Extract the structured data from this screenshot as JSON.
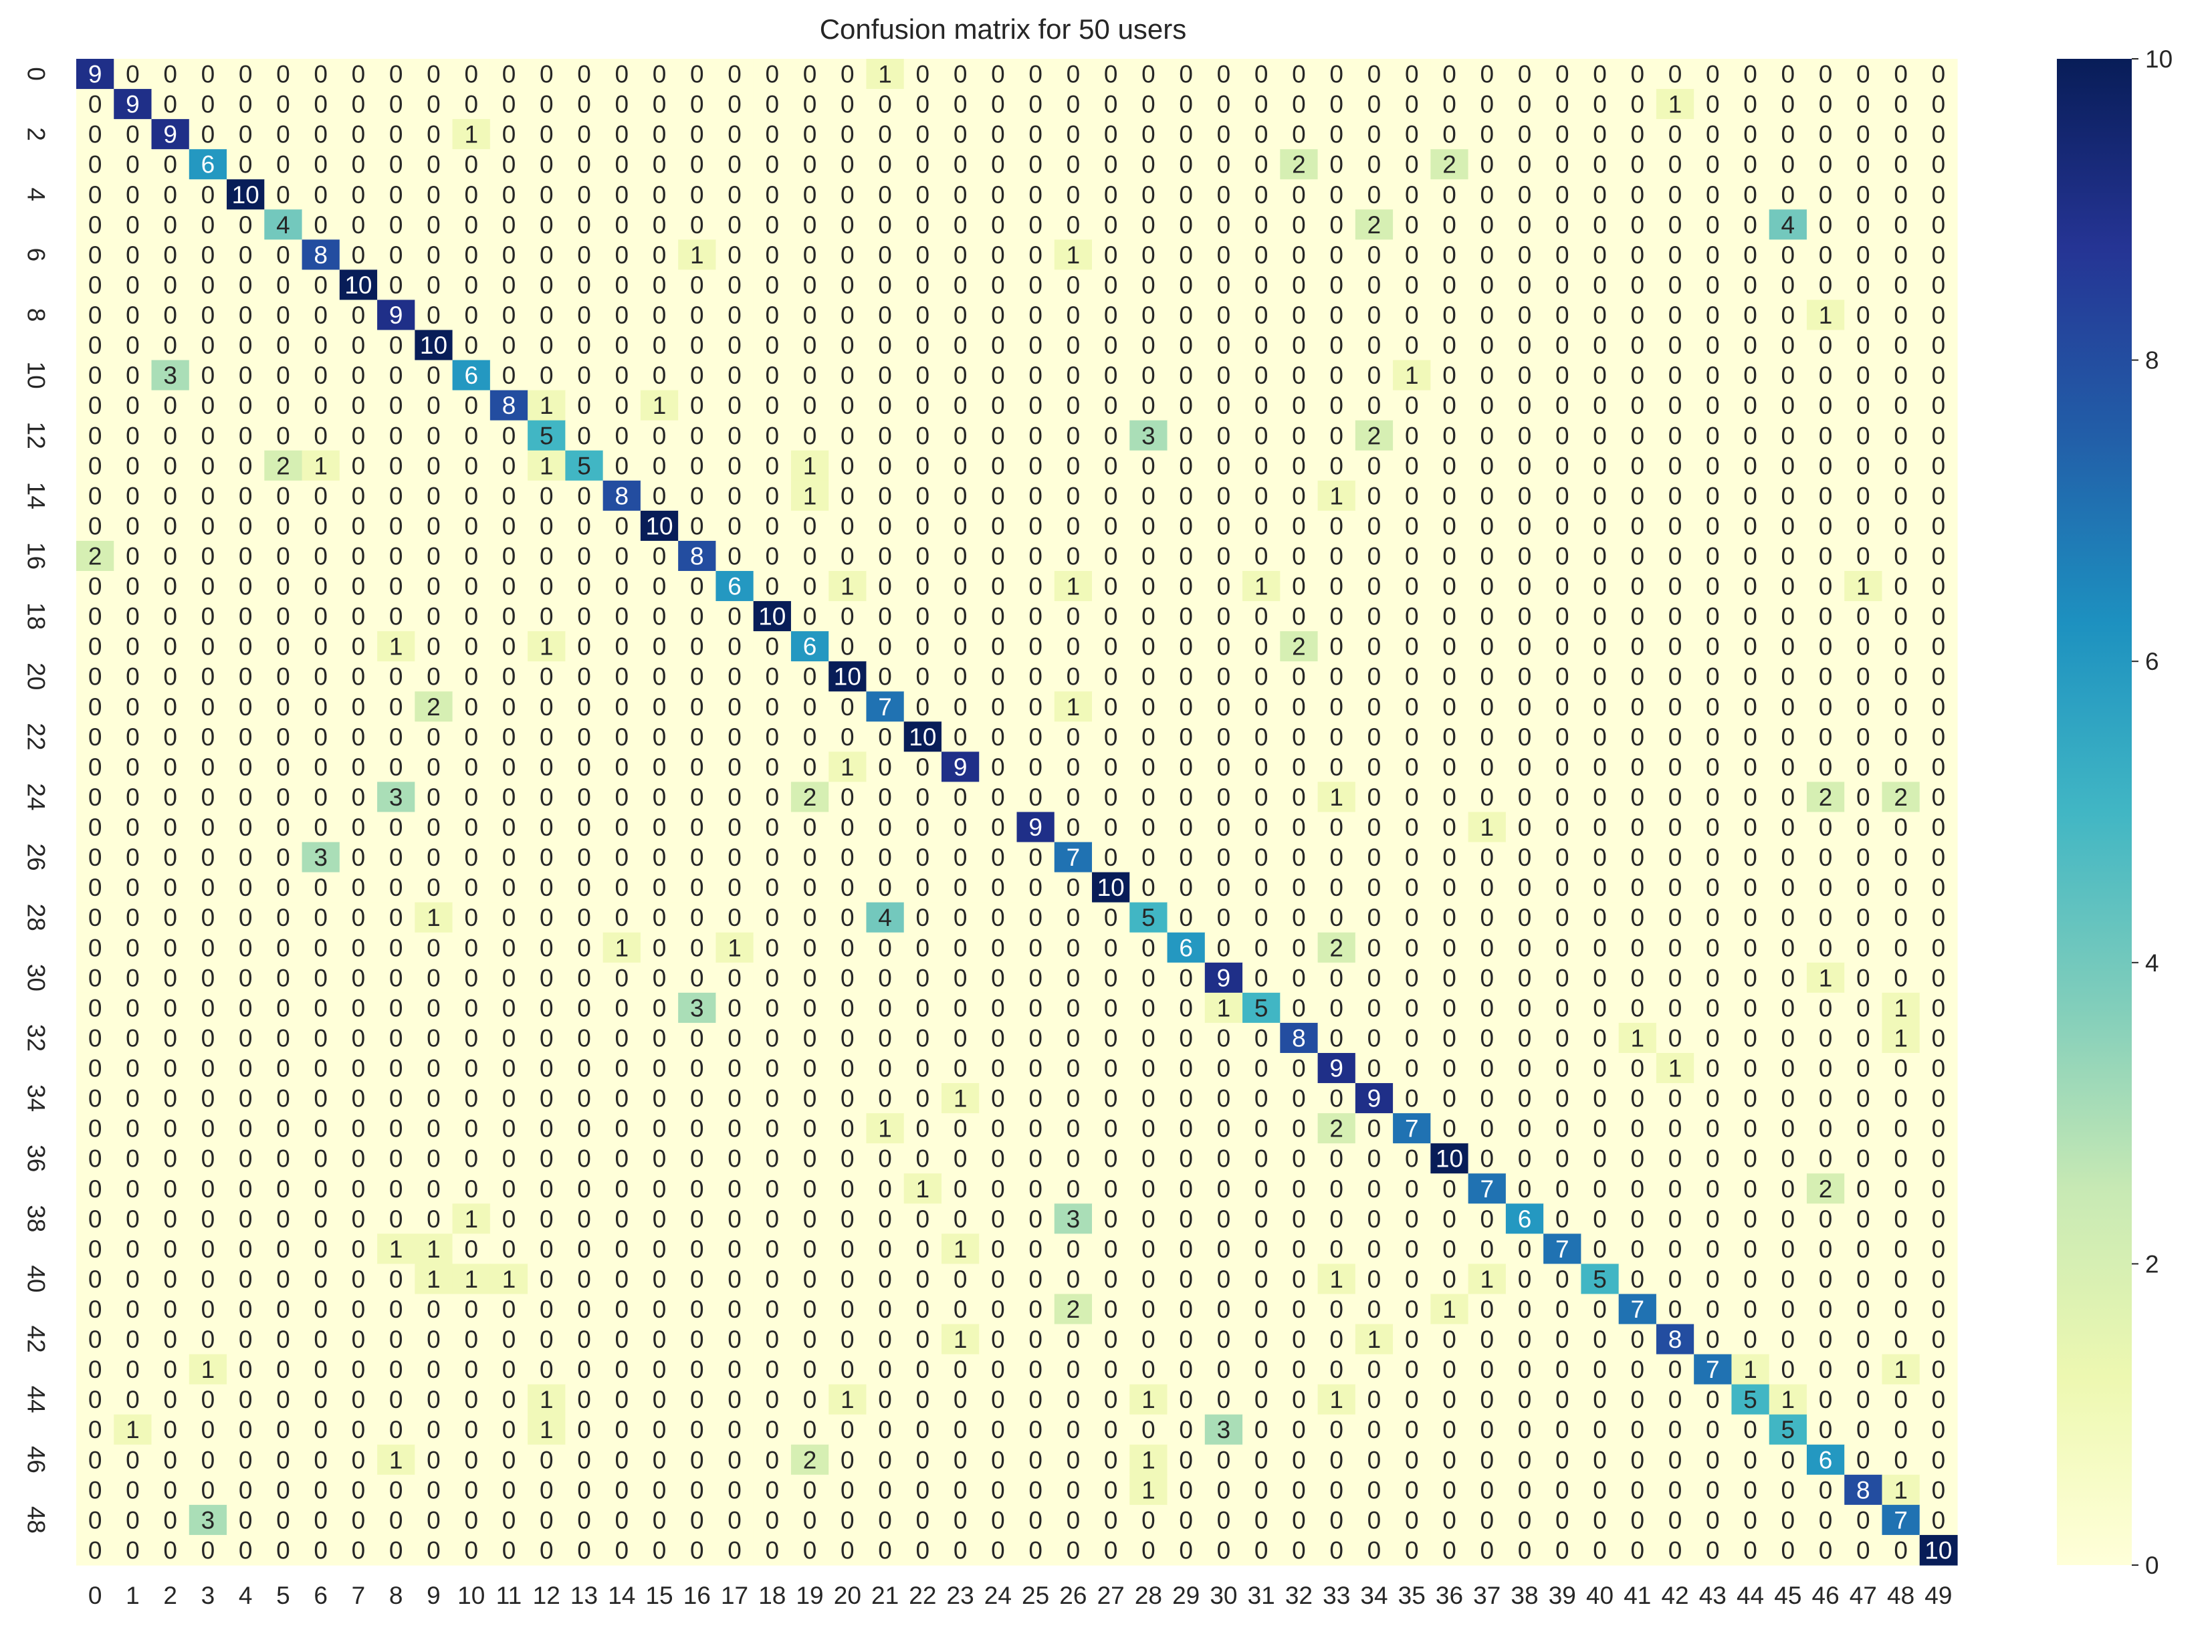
{
  "chart_data": {
    "type": "heatmap",
    "title": "Confusion matrix for 50 users",
    "xlabel": "",
    "ylabel": "",
    "x_tick_labels": [
      "0",
      "1",
      "2",
      "3",
      "4",
      "5",
      "6",
      "7",
      "8",
      "9",
      "10",
      "11",
      "12",
      "13",
      "14",
      "15",
      "16",
      "17",
      "18",
      "19",
      "20",
      "21",
      "22",
      "23",
      "24",
      "25",
      "26",
      "27",
      "28",
      "29",
      "30",
      "31",
      "32",
      "33",
      "34",
      "35",
      "36",
      "37",
      "38",
      "39",
      "40",
      "41",
      "42",
      "43",
      "44",
      "45",
      "46",
      "47",
      "48",
      "49"
    ],
    "y_tick_labels": [
      "0",
      "2",
      "4",
      "6",
      "8",
      "10",
      "12",
      "14",
      "16",
      "18",
      "20",
      "22",
      "24",
      "26",
      "28",
      "30",
      "32",
      "34",
      "36",
      "38",
      "40",
      "42",
      "44",
      "46",
      "48"
    ],
    "y_tick_rows": [
      0,
      2,
      4,
      6,
      8,
      10,
      12,
      14,
      16,
      18,
      20,
      22,
      24,
      26,
      28,
      30,
      32,
      34,
      36,
      38,
      40,
      42,
      44,
      46,
      48
    ],
    "colorbar": {
      "min": 0,
      "max": 10,
      "ticks": [
        "0",
        "2",
        "4",
        "6",
        "8",
        "10"
      ],
      "colormap": "YlGnBu"
    },
    "colors": {
      "stops": [
        "#ffffd9",
        "#edf8b1",
        "#c7e9b4",
        "#7fcdbb",
        "#41b6c4",
        "#1d91c0",
        "#225ea8",
        "#253494",
        "#081d58"
      ]
    },
    "cells": [
      [
        0,
        0,
        9
      ],
      [
        0,
        21,
        1
      ],
      [
        1,
        1,
        9
      ],
      [
        1,
        42,
        1
      ],
      [
        2,
        2,
        9
      ],
      [
        2,
        10,
        1
      ],
      [
        3,
        3,
        6
      ],
      [
        3,
        32,
        2
      ],
      [
        3,
        36,
        2
      ],
      [
        4,
        4,
        10
      ],
      [
        5,
        5,
        4
      ],
      [
        5,
        34,
        2
      ],
      [
        5,
        45,
        4
      ],
      [
        6,
        6,
        8
      ],
      [
        6,
        16,
        1
      ],
      [
        6,
        26,
        1
      ],
      [
        7,
        7,
        10
      ],
      [
        8,
        8,
        9
      ],
      [
        8,
        46,
        1
      ],
      [
        9,
        9,
        10
      ],
      [
        10,
        2,
        3
      ],
      [
        10,
        10,
        6
      ],
      [
        10,
        35,
        1
      ],
      [
        11,
        11,
        8
      ],
      [
        11,
        12,
        1
      ],
      [
        11,
        15,
        1
      ],
      [
        12,
        12,
        5
      ],
      [
        12,
        28,
        3
      ],
      [
        12,
        34,
        2
      ],
      [
        13,
        5,
        2
      ],
      [
        13,
        6,
        1
      ],
      [
        13,
        12,
        1
      ],
      [
        13,
        13,
        5
      ],
      [
        13,
        19,
        1
      ],
      [
        14,
        14,
        8
      ],
      [
        14,
        19,
        1
      ],
      [
        14,
        33,
        1
      ],
      [
        15,
        15,
        10
      ],
      [
        16,
        0,
        2
      ],
      [
        16,
        16,
        8
      ],
      [
        17,
        17,
        6
      ],
      [
        17,
        20,
        1
      ],
      [
        17,
        26,
        1
      ],
      [
        17,
        31,
        1
      ],
      [
        17,
        47,
        1
      ],
      [
        18,
        18,
        10
      ],
      [
        19,
        8,
        1
      ],
      [
        19,
        12,
        1
      ],
      [
        19,
        19,
        6
      ],
      [
        19,
        32,
        2
      ],
      [
        20,
        20,
        10
      ],
      [
        21,
        9,
        2
      ],
      [
        21,
        21,
        7
      ],
      [
        21,
        26,
        1
      ],
      [
        22,
        22,
        10
      ],
      [
        23,
        20,
        1
      ],
      [
        23,
        23,
        9
      ],
      [
        24,
        8,
        3
      ],
      [
        24,
        19,
        2
      ],
      [
        24,
        33,
        1
      ],
      [
        24,
        46,
        2
      ],
      [
        24,
        48,
        2
      ],
      [
        25,
        25,
        9
      ],
      [
        25,
        37,
        1
      ],
      [
        26,
        6,
        3
      ],
      [
        26,
        26,
        7
      ],
      [
        27,
        27,
        10
      ],
      [
        28,
        9,
        1
      ],
      [
        28,
        21,
        4
      ],
      [
        28,
        28,
        5
      ],
      [
        29,
        14,
        1
      ],
      [
        29,
        17,
        1
      ],
      [
        29,
        29,
        6
      ],
      [
        29,
        33,
        2
      ],
      [
        30,
        30,
        9
      ],
      [
        30,
        46,
        1
      ],
      [
        31,
        16,
        3
      ],
      [
        31,
        30,
        1
      ],
      [
        31,
        31,
        5
      ],
      [
        31,
        48,
        1
      ],
      [
        32,
        32,
        8
      ],
      [
        32,
        41,
        1
      ],
      [
        32,
        48,
        1
      ],
      [
        33,
        33,
        9
      ],
      [
        33,
        42,
        1
      ],
      [
        34,
        23,
        1
      ],
      [
        34,
        34,
        9
      ],
      [
        35,
        21,
        1
      ],
      [
        35,
        33,
        2
      ],
      [
        35,
        35,
        7
      ],
      [
        36,
        36,
        10
      ],
      [
        37,
        22,
        1
      ],
      [
        37,
        37,
        7
      ],
      [
        37,
        46,
        2
      ],
      [
        38,
        10,
        1
      ],
      [
        38,
        26,
        3
      ],
      [
        38,
        38,
        6
      ],
      [
        39,
        8,
        1
      ],
      [
        39,
        9,
        1
      ],
      [
        39,
        23,
        1
      ],
      [
        39,
        39,
        7
      ],
      [
        40,
        9,
        1
      ],
      [
        40,
        10,
        1
      ],
      [
        40,
        11,
        1
      ],
      [
        40,
        33,
        1
      ],
      [
        40,
        37,
        1
      ],
      [
        40,
        40,
        5
      ],
      [
        41,
        26,
        2
      ],
      [
        41,
        36,
        1
      ],
      [
        41,
        41,
        7
      ],
      [
        42,
        23,
        1
      ],
      [
        42,
        34,
        1
      ],
      [
        42,
        42,
        8
      ],
      [
        43,
        3,
        1
      ],
      [
        43,
        43,
        7
      ],
      [
        43,
        44,
        1
      ],
      [
        43,
        48,
        1
      ],
      [
        44,
        12,
        1
      ],
      [
        44,
        20,
        1
      ],
      [
        44,
        28,
        1
      ],
      [
        44,
        33,
        1
      ],
      [
        44,
        44,
        5
      ],
      [
        44,
        45,
        1
      ],
      [
        45,
        1,
        1
      ],
      [
        45,
        12,
        1
      ],
      [
        45,
        30,
        3
      ],
      [
        45,
        45,
        5
      ],
      [
        46,
        8,
        1
      ],
      [
        46,
        19,
        2
      ],
      [
        46,
        28,
        1
      ],
      [
        46,
        46,
        6
      ],
      [
        47,
        28,
        1
      ],
      [
        47,
        47,
        8
      ],
      [
        47,
        48,
        1
      ],
      [
        48,
        3,
        3
      ],
      [
        48,
        48,
        7
      ],
      [
        49,
        49,
        10
      ]
    ]
  }
}
